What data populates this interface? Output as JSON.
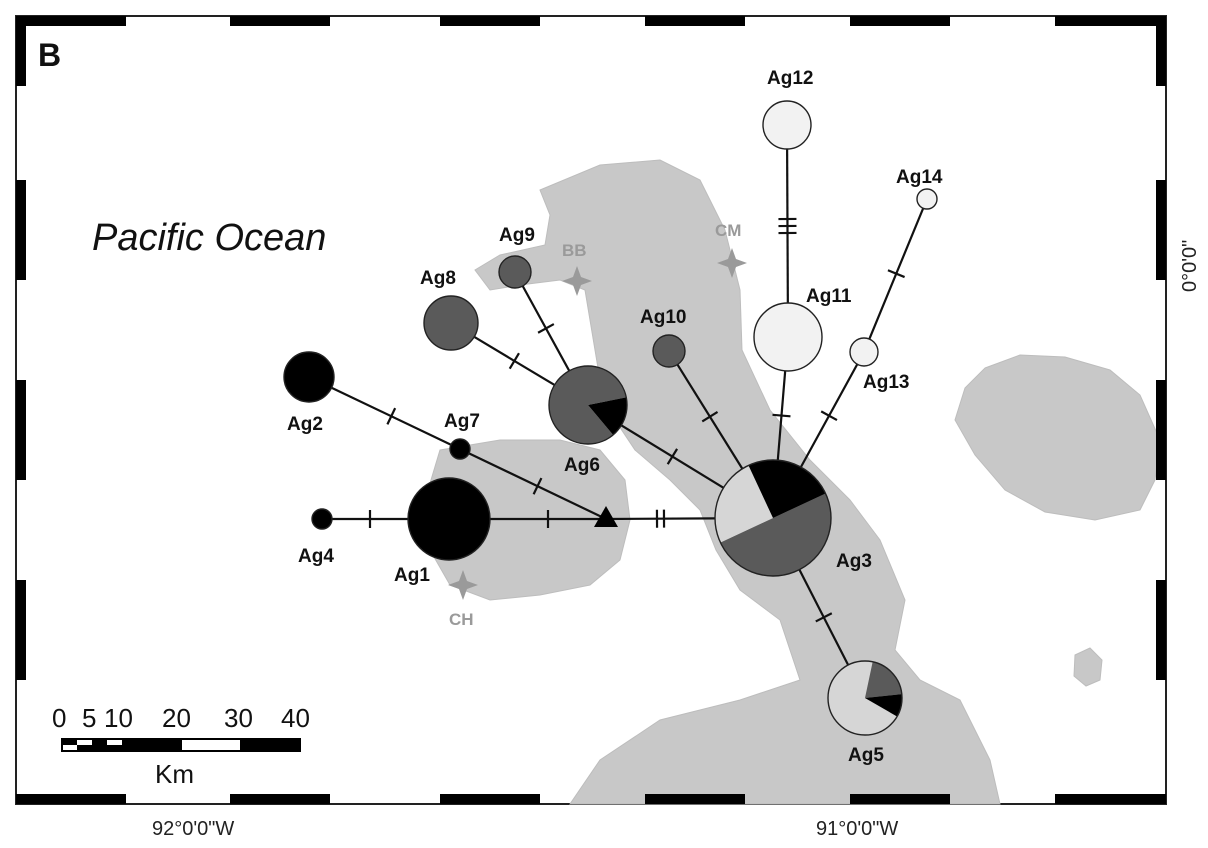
{
  "panel_label": "B",
  "ocean_label": "Pacific Ocean",
  "longitude_labels": [
    "92°0'0\"W",
    "91°0'0\"W"
  ],
  "latitude_label": "0°0'0\"",
  "scale_bar": {
    "ticks": [
      "0",
      "5",
      "10",
      "20",
      "30",
      "40"
    ],
    "unit": "Km"
  },
  "sampling_sites": [
    "BB",
    "CM",
    "CH"
  ],
  "colors": {
    "land": "#c8c8c8",
    "black_group": "#000000",
    "dark_gray_group": "#5a5a5a",
    "light_gray_group": "#d6d6d6",
    "white_group": "#f2f2f2"
  },
  "haplotypes": [
    {
      "id": "Ag1",
      "label": "Ag1",
      "slices": [
        {
          "color": "black_group",
          "fraction": 1.0
        }
      ]
    },
    {
      "id": "Ag2",
      "label": "Ag2",
      "slices": [
        {
          "color": "black_group",
          "fraction": 1.0
        }
      ]
    },
    {
      "id": "Ag3",
      "label": "Ag3",
      "slices": [
        {
          "color": "dark_gray_group",
          "fraction": 0.5
        },
        {
          "color": "light_gray_group",
          "fraction": 0.25
        },
        {
          "color": "black_group",
          "fraction": 0.25
        }
      ]
    },
    {
      "id": "Ag4",
      "label": "Ag4",
      "slices": [
        {
          "color": "black_group",
          "fraction": 1.0
        }
      ]
    },
    {
      "id": "Ag5",
      "label": "Ag5",
      "slices": [
        {
          "color": "light_gray_group",
          "fraction": 0.7
        },
        {
          "color": "dark_gray_group",
          "fraction": 0.2
        },
        {
          "color": "black_group",
          "fraction": 0.1
        }
      ]
    },
    {
      "id": "Ag6",
      "label": "Ag6",
      "slices": [
        {
          "color": "dark_gray_group",
          "fraction": 0.83
        },
        {
          "color": "black_group",
          "fraction": 0.17
        }
      ]
    },
    {
      "id": "Ag7",
      "label": "Ag7",
      "slices": [
        {
          "color": "black_group",
          "fraction": 1.0
        }
      ]
    },
    {
      "id": "Ag8",
      "label": "Ag8",
      "slices": [
        {
          "color": "dark_gray_group",
          "fraction": 1.0
        }
      ]
    },
    {
      "id": "Ag9",
      "label": "Ag9",
      "slices": [
        {
          "color": "dark_gray_group",
          "fraction": 1.0
        }
      ]
    },
    {
      "id": "Ag10",
      "label": "Ag10",
      "slices": [
        {
          "color": "dark_gray_group",
          "fraction": 1.0
        }
      ]
    },
    {
      "id": "Ag11",
      "label": "Ag11",
      "slices": [
        {
          "color": "white_group",
          "fraction": 1.0
        }
      ]
    },
    {
      "id": "Ag12",
      "label": "Ag12",
      "slices": [
        {
          "color": "white_group",
          "fraction": 1.0
        }
      ]
    },
    {
      "id": "Ag13",
      "label": "Ag13",
      "slices": [
        {
          "color": "white_group",
          "fraction": 1.0
        }
      ]
    },
    {
      "id": "Ag14",
      "label": "Ag14",
      "slices": [
        {
          "color": "white_group",
          "fraction": 1.0
        }
      ]
    }
  ],
  "network_edges": [
    {
      "from": "Ag4",
      "to": "Ag1",
      "mutations": 1
    },
    {
      "from": "Ag1",
      "to": "median-vector",
      "mutations": 1
    },
    {
      "from": "median-vector",
      "to": "Ag3",
      "mutations": 2
    },
    {
      "from": "Ag2",
      "to": "Ag7",
      "mutations": 1
    },
    {
      "from": "Ag7",
      "to": "median-vector",
      "mutations": 1
    },
    {
      "from": "Ag6",
      "to": "Ag3",
      "mutations": 1
    },
    {
      "from": "Ag8",
      "to": "Ag6",
      "mutations": 1
    },
    {
      "from": "Ag9",
      "to": "Ag6",
      "mutations": 1
    },
    {
      "from": "Ag10",
      "to": "Ag3",
      "mutations": 1
    },
    {
      "from": "Ag11",
      "to": "Ag3",
      "mutations": 1
    },
    {
      "from": "Ag12",
      "to": "Ag11",
      "mutations": 3
    },
    {
      "from": "Ag13",
      "to": "Ag3",
      "mutations": 1
    },
    {
      "from": "Ag14",
      "to": "Ag13",
      "mutations": 1
    },
    {
      "from": "Ag3",
      "to": "Ag5",
      "mutations": 1
    }
  ]
}
